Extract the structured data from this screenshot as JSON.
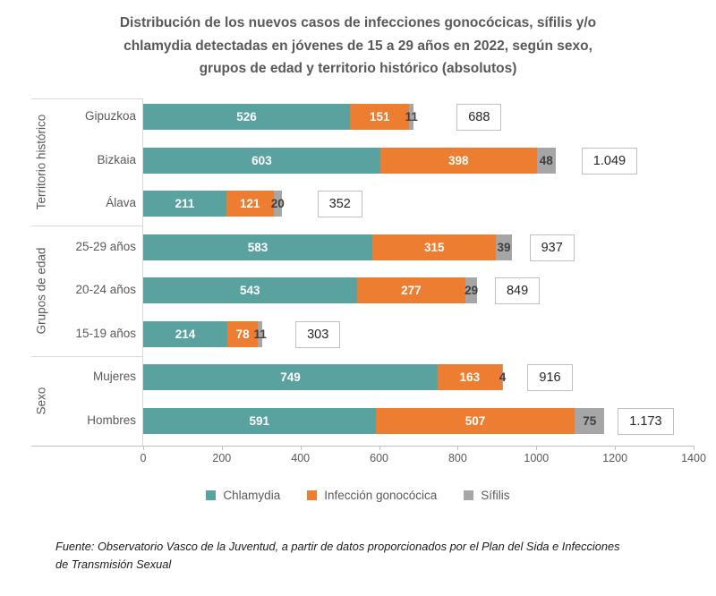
{
  "title": {
    "lines": [
      "Distribución de los nuevos casos de infecciones gonocócicas, sífilis y/o",
      "chlamydia detectadas en jóvenes de 15 a 29 años en 2022, según sexo,",
      "grupos de edad y territorio histórico (absolutos)"
    ]
  },
  "chart_data": {
    "type": "bar",
    "orientation": "horizontal",
    "stacked": true,
    "groups": [
      {
        "label": "Territorio histórico",
        "categories": [
          "Gipuzkoa",
          "Bizkaia",
          "Álava"
        ]
      },
      {
        "label": "Grupos de edad",
        "categories": [
          "25-29 años",
          "20-24 años",
          "15-19 años"
        ]
      },
      {
        "label": "Sexo",
        "categories": [
          "Mujeres",
          "Hombres"
        ]
      }
    ],
    "categories": [
      "Gipuzkoa",
      "Bizkaia",
      "Álava",
      "25-29 años",
      "20-24 años",
      "15-19 años",
      "Mujeres",
      "Hombres"
    ],
    "series": [
      {
        "name": "Chlamydia",
        "color": "#5aa2a0",
        "label_color": "#ffffff",
        "values": [
          526,
          603,
          211,
          583,
          543,
          214,
          749,
          591
        ]
      },
      {
        "name": "Infección gonocócica",
        "color": "#ed7d31",
        "label_color": "#ffffff",
        "values": [
          151,
          398,
          121,
          315,
          277,
          78,
          163,
          507
        ]
      },
      {
        "name": "Sífilis",
        "color": "#a6a6a6",
        "label_color": "#3f3f3f",
        "values": [
          11,
          48,
          20,
          39,
          29,
          11,
          4,
          75
        ]
      }
    ],
    "totals": [
      "688",
      "1.049",
      "352",
      "937",
      "849",
      "303",
      "916",
      "1.173"
    ],
    "x_axis": {
      "min": 0,
      "max": 1400,
      "ticks": [
        0,
        200,
        400,
        600,
        800,
        1000,
        1200,
        1400
      ]
    },
    "legend_position": "bottom",
    "grid": false
  },
  "footer": {
    "lines": [
      "Fuente: Observatorio Vasco de la Juventud, a partir de datos proporcionados por el Plan del Sida e Infecciones",
      "de Transmisión Sexual"
    ]
  }
}
